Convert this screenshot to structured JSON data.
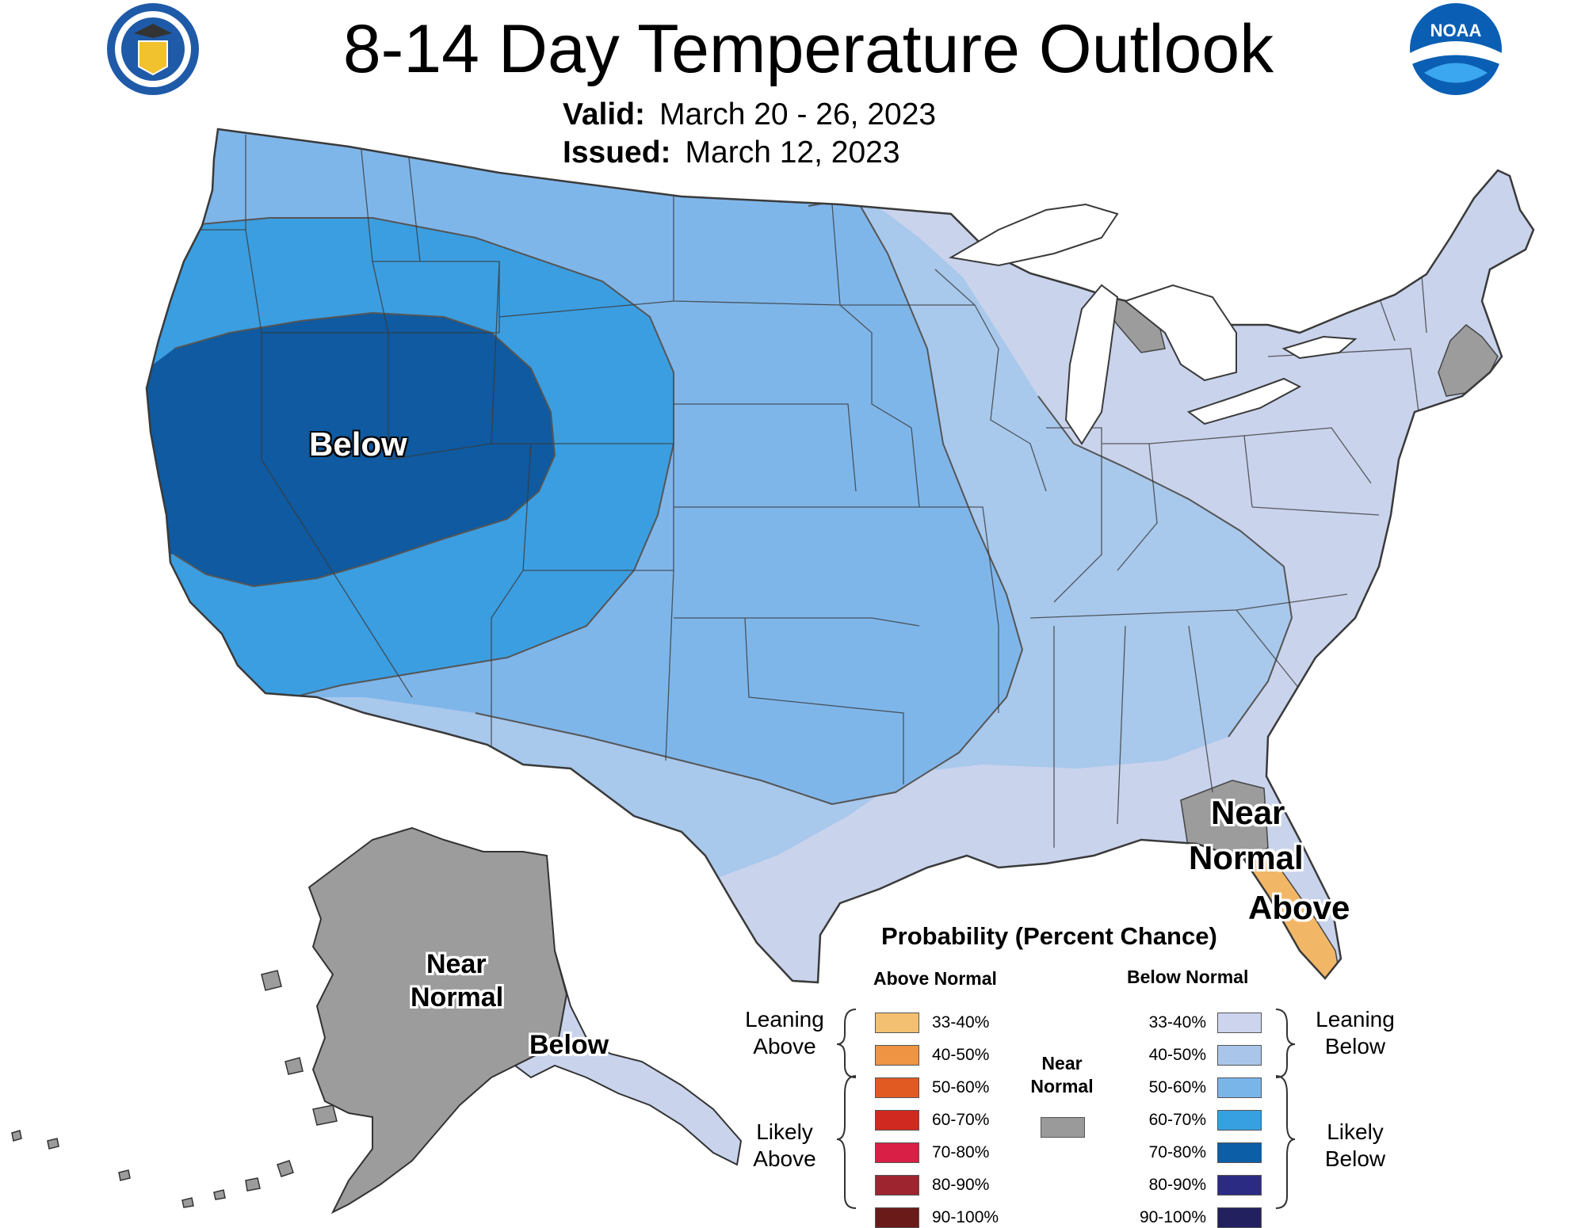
{
  "header": {
    "title": "8-14 Day Temperature Outlook",
    "valid_label": "Valid:",
    "valid_value": "March 20 - 26, 2023",
    "issued_label": "Issued:",
    "issued_value": "March 12, 2023"
  },
  "logos": {
    "left": "department-of-commerce-seal",
    "right": "noaa-logo",
    "noaa_text": "NOAA"
  },
  "map": {
    "labels": {
      "west_below": "Below",
      "florida_near_normal_1": "Near",
      "florida_near_normal_2": "Normal",
      "florida_above": "Above",
      "alaska_near_normal_1": "Near",
      "alaska_near_normal_2": "Normal",
      "alaska_below": "Below"
    },
    "colors": {
      "below_33_40": "#c9d3ec",
      "below_40_50": "#a8c8ec",
      "below_50_60": "#7fb6ea",
      "below_60_70": "#3b9ee0",
      "below_70_80": "#0f5aa0",
      "near_normal": "#9c9c9c",
      "above_33_40": "#f2b766",
      "water": "#ffffff",
      "boundary": "#3a3a3a"
    }
  },
  "legend": {
    "title": "Probability (Percent Chance)",
    "above_header": "Above Normal",
    "below_header": "Below Normal",
    "near_normal_1": "Near",
    "near_normal_2": "Normal",
    "near_normal_color": "#9a9a9a",
    "leaning_above_1": "Leaning",
    "leaning_above_2": "Above",
    "likely_above_1": "Likely",
    "likely_above_2": "Above",
    "leaning_below_1": "Leaning",
    "leaning_below_2": "Below",
    "likely_below_1": "Likely",
    "likely_below_2": "Below",
    "above": [
      {
        "range": "33-40%",
        "color": "#f3c071"
      },
      {
        "range": "40-50%",
        "color": "#ee9443"
      },
      {
        "range": "50-60%",
        "color": "#e05a22"
      },
      {
        "range": "60-70%",
        "color": "#d0291f"
      },
      {
        "range": "70-80%",
        "color": "#d91f45"
      },
      {
        "range": "80-90%",
        "color": "#9e2430"
      },
      {
        "range": "90-100%",
        "color": "#6b1a1a"
      }
    ],
    "below": [
      {
        "range": "33-40%",
        "color": "#cdd4ee"
      },
      {
        "range": "40-50%",
        "color": "#a9c6ea"
      },
      {
        "range": "50-60%",
        "color": "#7ab5ea"
      },
      {
        "range": "60-70%",
        "color": "#37a0e0"
      },
      {
        "range": "70-80%",
        "color": "#0c5ea6"
      },
      {
        "range": "80-90%",
        "color": "#2c2b84"
      },
      {
        "range": "90-100%",
        "color": "#22205e"
      }
    ]
  }
}
